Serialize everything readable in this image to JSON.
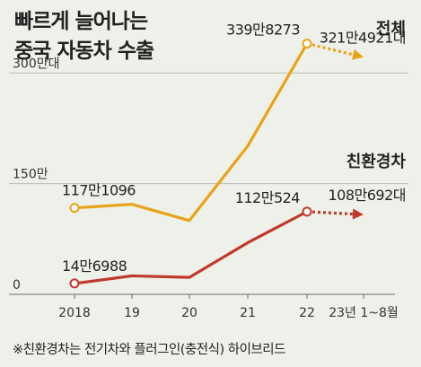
{
  "chart_data": {
    "type": "line",
    "title": [
      "빠르게 늘어나는",
      "중국 자동차 수출"
    ],
    "unit_note": "",
    "categories": [
      "2018",
      "19",
      "20",
      "21",
      "22",
      "23년 1~8월"
    ],
    "y_ticks": [
      "300만대",
      "150만",
      "0"
    ],
    "y_tick_values": [
      3000000,
      1500000,
      0
    ],
    "ylim": [
      0,
      3600000
    ],
    "grid": true,
    "series": [
      {
        "name": "전체",
        "color": "#e8a317",
        "values": [
          1171096,
          1220000,
          1000000,
          2010000,
          3398273,
          3214921
        ],
        "labels": [
          {
            "index": 0,
            "text": "117만1096"
          },
          {
            "index": 4,
            "text": "339만8273"
          },
          {
            "index": 5,
            "text": "321만4921대"
          }
        ]
      },
      {
        "name": "친환경차",
        "color": "#c0392b",
        "values": [
          146988,
          250000,
          230000,
          700000,
          1120524,
          1080692
        ],
        "labels": [
          {
            "index": 0,
            "text": "14만6988"
          },
          {
            "index": 4,
            "text": "112만524"
          },
          {
            "index": 5,
            "text": "108만692대"
          }
        ]
      }
    ],
    "footnote": "※친환경차는 전기차와 플러그인(충전식) 하이브리드"
  }
}
